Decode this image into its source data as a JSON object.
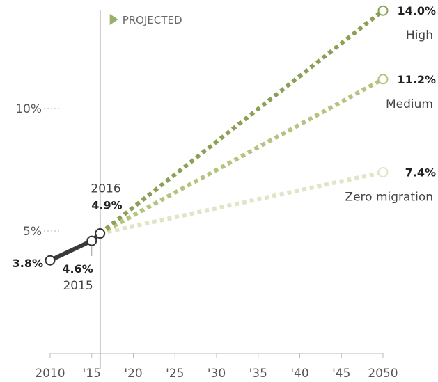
{
  "chart_data": {
    "type": "line",
    "title": "",
    "xlabel": "",
    "ylabel": "",
    "x_tick_labels": [
      "2010",
      "'15",
      "'20",
      "'25",
      "'30",
      "'35",
      "'40",
      "'45",
      "2050"
    ],
    "x_ticks": [
      2010,
      2015,
      2020,
      2025,
      2030,
      2035,
      2040,
      2045,
      2050
    ],
    "y_tick_labels": [
      "5%",
      "10%"
    ],
    "y_ticks": [
      5,
      10
    ],
    "xlim": [
      2010,
      2050
    ],
    "ylim": [
      0,
      15
    ],
    "projected_label": "PROJECTED",
    "projected_start": 2016,
    "colors": {
      "observed": "#3a3a3a",
      "high": "#8aa155",
      "medium": "#b3c47f",
      "zero": "#dfe6c5"
    },
    "observed": {
      "points": [
        {
          "x": 2010,
          "y": 3.8,
          "value_label": "3.8%",
          "year_label": ""
        },
        {
          "x": 2015,
          "y": 4.6,
          "value_label": "4.6%",
          "year_label": "2015"
        },
        {
          "x": 2016,
          "y": 4.9,
          "value_label": "4.9%",
          "year_label": "2016"
        }
      ]
    },
    "series": [
      {
        "name": "High",
        "key": "high",
        "x": [
          2016,
          2050
        ],
        "y": [
          4.9,
          14.0
        ],
        "end_label": "14.0%"
      },
      {
        "name": "Medium",
        "key": "medium",
        "x": [
          2016,
          2050
        ],
        "y": [
          4.9,
          11.2
        ],
        "end_label": "11.2%"
      },
      {
        "name": "Zero migration",
        "key": "zero",
        "x": [
          2016,
          2050
        ],
        "y": [
          4.9,
          7.4
        ],
        "end_label": "7.4%"
      }
    ]
  }
}
